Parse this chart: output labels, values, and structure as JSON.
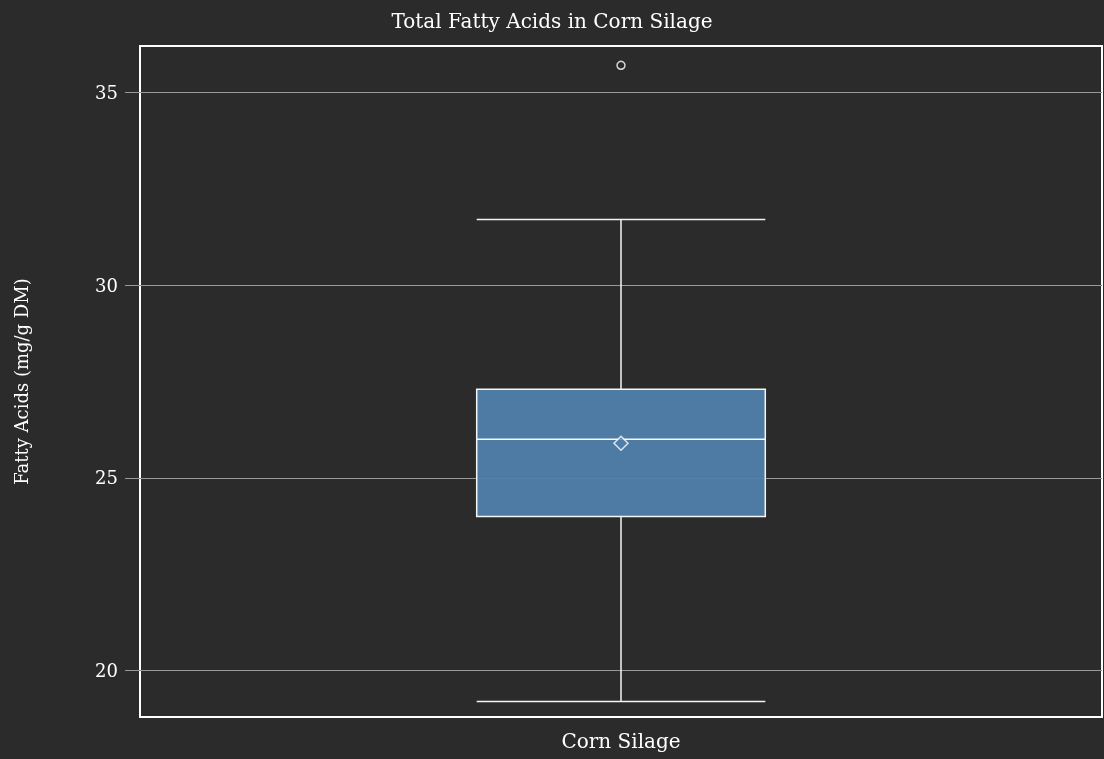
{
  "chart_data": {
    "type": "box",
    "title": "Total Fatty Acids in Corn Silage",
    "ylabel": "Fatty Acids (mg/g DM)",
    "categories": [
      "Corn Silage"
    ],
    "color": "#4f7faa",
    "boxes": [
      {
        "low": 19.2,
        "q1": 24.0,
        "median": 26.0,
        "q3": 27.3,
        "high": 31.7,
        "mean": 25.9,
        "outliers": [
          35.7
        ]
      }
    ],
    "ylim": [
      18.8,
      36.2
    ],
    "yticks": [
      20,
      25,
      30,
      35
    ],
    "grid": "y"
  }
}
